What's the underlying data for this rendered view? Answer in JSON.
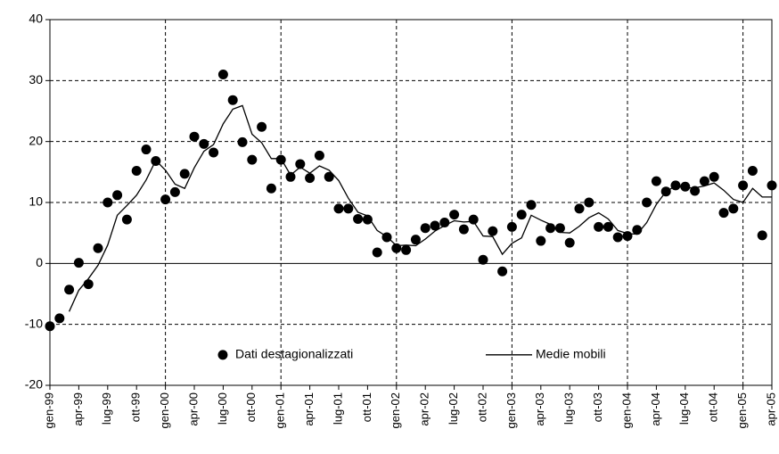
{
  "chart_data": {
    "type": "line",
    "categories": [
      "gen-99",
      null,
      null,
      "apr-99",
      null,
      null,
      "lug-99",
      null,
      null,
      "ott-99",
      null,
      null,
      "gen-00",
      null,
      null,
      "apr-00",
      null,
      null,
      "lug-00",
      null,
      null,
      "ott-00",
      null,
      null,
      "gen-01",
      null,
      null,
      "apr-01",
      null,
      null,
      "lug-01",
      null,
      null,
      "ott-01",
      null,
      null,
      "gen-02",
      null,
      null,
      "apr-02",
      null,
      null,
      "lug-02",
      null,
      null,
      "ott-02",
      null,
      null,
      "gen-03",
      null,
      null,
      "apr-03",
      null,
      null,
      "lug-03",
      null,
      null,
      "ott-03",
      null,
      null,
      "gen-04",
      null,
      null,
      "apr-04",
      null,
      null,
      "lug-04",
      null,
      null,
      "ott-04",
      null,
      null,
      "gen-05",
      null,
      null,
      "apr-05"
    ],
    "series": [
      {
        "name": "Dati destagionalizzati",
        "color": "#000000",
        "marker": "dot",
        "values": [
          -10.3,
          -9,
          -4.3,
          0.1,
          -3.4,
          2.5,
          10,
          11.2,
          7.2,
          15.2,
          18.7,
          16.8,
          10.5,
          11.7,
          14.7,
          20.8,
          19.6,
          18.2,
          31,
          26.8,
          19.9,
          17,
          22.4,
          12.3,
          17,
          14.2,
          16.3,
          14,
          17.7,
          14.2,
          9,
          9,
          7.3,
          7.2,
          1.8,
          4.3,
          2.5,
          2.2,
          3.9,
          5.8,
          6.2,
          6.7,
          8,
          5.6,
          7.2,
          0.6,
          5.3,
          -1.3,
          6,
          8,
          9.6,
          3.7,
          5.8,
          5.8,
          3.4,
          9,
          10,
          6,
          6,
          4.3,
          4.5,
          5.5,
          10,
          13.5,
          11.8,
          12.8,
          12.6,
          11.9,
          13.5,
          14.2,
          8.3,
          9,
          12.8,
          15.2,
          4.6,
          12.8
        ]
      },
      {
        "name": "Medie mobili",
        "color": "#000000",
        "marker": "line",
        "values": [
          null,
          null,
          -7.9,
          -4.4,
          -2.5,
          -0.3,
          3.0,
          7.9,
          9.5,
          11.2,
          13.7,
          16.9,
          15.3,
          13.0,
          12.3,
          15.7,
          18.4,
          19.5,
          22.9,
          25.3,
          25.9,
          21.2,
          19.8,
          17.2,
          17.2,
          14.5,
          15.8,
          14.8,
          16.0,
          15.3,
          13.6,
          10.7,
          8.4,
          7.8,
          5.4,
          4.4,
          2.9,
          3.0,
          2.9,
          4.0,
          5.3,
          6.2,
          7.0,
          6.8,
          6.9,
          4.5,
          4.4,
          1.5,
          3.3,
          4.2,
          7.9,
          7.1,
          6.4,
          5.1,
          5.0,
          6.1,
          7.5,
          8.3,
          7.3,
          5.4,
          4.9,
          4.8,
          6.7,
          9.7,
          11.8,
          12.7,
          12.4,
          12.4,
          12.7,
          13.2,
          12.0,
          10.5,
          10.0,
          12.3,
          10.9,
          10.9
        ]
      }
    ],
    "ylim": [
      -20,
      40
    ],
    "yticks": [
      -20,
      -10,
      0,
      10,
      20,
      30,
      40
    ],
    "grid": true,
    "legend": "bottom"
  }
}
